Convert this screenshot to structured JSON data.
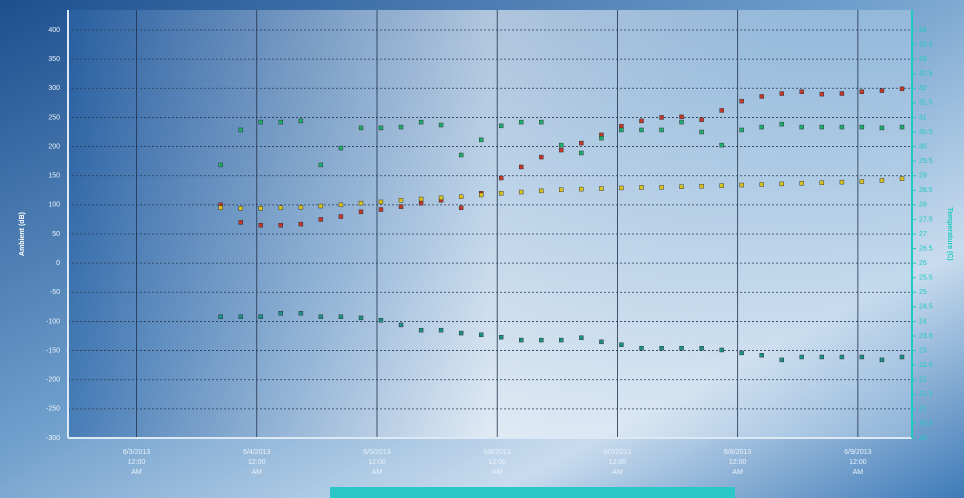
{
  "chart_data": {
    "type": "scatter",
    "y_label": "Ambient (dB)",
    "y2_label": "Temperature (C)",
    "x": [
      41428.7,
      41428.867,
      41429.033,
      41429.2,
      41429.367,
      41429.533,
      41429.7,
      41429.867,
      41430.033,
      41430.2,
      41430.367,
      41430.533,
      41430.7,
      41430.867,
      41431.033,
      41431.2,
      41431.367,
      41431.533,
      41431.7,
      41431.867,
      41432.033,
      41432.2,
      41432.367,
      41432.533,
      41432.7,
      41432.867,
      41433.033,
      41433.2,
      41433.367,
      41433.533,
      41433.7,
      41433.867,
      41434.033,
      41434.2,
      41434.367
    ],
    "series": [
      {
        "color": "#c0392b",
        "values": [
          100,
          70,
          65,
          65,
          67,
          75,
          80,
          88,
          92,
          97,
          103,
          108,
          95,
          120,
          146,
          165,
          182,
          194,
          206,
          220,
          235,
          244,
          250,
          251,
          246,
          262,
          278,
          286,
          291,
          294,
          290,
          291,
          294,
          296,
          299
        ]
      },
      {
        "color": "#d8c21e",
        "values": [
          95,
          94,
          94,
          95,
          96,
          98,
          100,
          103,
          105,
          108,
          110,
          112,
          114,
          117,
          120,
          122,
          124,
          126,
          127,
          128,
          129,
          130,
          130,
          131,
          132,
          133,
          134,
          135,
          136,
          137,
          138,
          139,
          140,
          142,
          145
        ]
      },
      {
        "color": "#1fae6e",
        "axis": "y2",
        "values": [
          29.37,
          30.57,
          30.84,
          30.84,
          30.88,
          29.37,
          29.95,
          30.64,
          30.64,
          30.67,
          30.84,
          30.74,
          29.71,
          30.23,
          30.71,
          30.84,
          30.84,
          30.05,
          29.78,
          30.29,
          30.57,
          30.57,
          30.57,
          30.84,
          30.5,
          30.05,
          30.57,
          30.67,
          30.77,
          30.67,
          30.67,
          30.67,
          30.67,
          30.64,
          30.67
        ]
      },
      {
        "color": "#1e8f86",
        "values": [
          -92,
          -92,
          -92,
          -86,
          -86,
          -92,
          -92,
          -94,
          -98,
          -106,
          -115,
          -115,
          -120,
          -123,
          -127,
          -132,
          -132,
          -132,
          -128,
          -135,
          -140,
          -146,
          -146,
          -146,
          -146,
          -149,
          -154,
          -158,
          -166,
          -161,
          -161,
          -161,
          -161,
          -166,
          -161
        ]
      }
    ],
    "xlim": [
      41427.43,
      41434.45
    ],
    "xticks": [
      {
        "value": 41428,
        "label": "6/3/2013 12:00 AM"
      },
      {
        "value": 41429,
        "label": "6/4/2013 12:00 AM"
      },
      {
        "value": 41430,
        "label": "6/5/2013 12:00 AM"
      },
      {
        "value": 41431,
        "label": "6/6/2013 12:00 AM"
      },
      {
        "value": 41432,
        "label": "6/7/2013 12:00 AM"
      },
      {
        "value": 41433,
        "label": "6/8/2013 12:00 AM"
      },
      {
        "value": 41434,
        "label": "6/9/2013 12:00 AM"
      }
    ],
    "ylim": [
      -300,
      400
    ],
    "yticks": [
      -300,
      -250,
      -200,
      -150,
      -100,
      -50,
      0,
      50,
      100,
      150,
      200,
      250,
      300,
      350,
      400
    ],
    "y2lim": [
      20,
      34
    ],
    "y2ticks": [
      20,
      20.5,
      21,
      21.5,
      22,
      22.5,
      23,
      23.5,
      24,
      24.5,
      25,
      25.5,
      26,
      26.5,
      27,
      27.5,
      28,
      28.5,
      29,
      29.5,
      30,
      30.5,
      31,
      31.5,
      32,
      32.5,
      33,
      33.5,
      34
    ],
    "grid": true
  }
}
